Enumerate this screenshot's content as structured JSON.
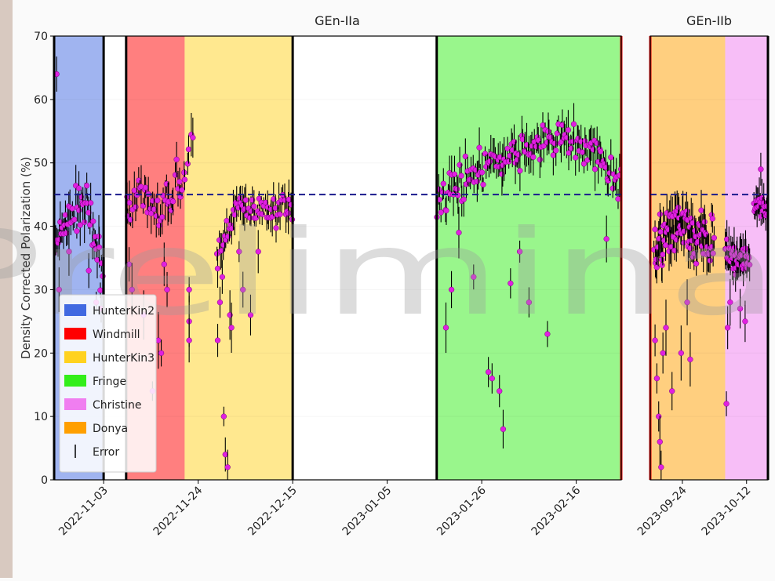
{
  "chart_data": {
    "type": "scatter",
    "ylabel": "Density Corrected Polarization (%)",
    "watermark": "Preliminary",
    "ylim": [
      0,
      70
    ],
    "yticks": [
      0,
      10,
      20,
      30,
      40,
      50,
      60,
      70
    ],
    "reference_line_y": 45,
    "legend": {
      "placement": "lower-left",
      "entries": [
        {
          "label": "HunterKin2",
          "color": "#4169e1",
          "kind": "patch"
        },
        {
          "label": "Windmill",
          "color": "#ff0000",
          "kind": "patch"
        },
        {
          "label": "HunterKin3",
          "color": "#ffd21f",
          "kind": "patch"
        },
        {
          "label": "Fringe",
          "color": "#33ee1a",
          "kind": "patch"
        },
        {
          "label": "Christine",
          "color": "#f07ef0",
          "kind": "patch"
        },
        {
          "label": "Donya",
          "color": "#ff9f00",
          "kind": "patch"
        },
        {
          "label": "Error",
          "color": "#000000",
          "kind": "line"
        }
      ]
    },
    "panels": [
      {
        "title": "GEn-IIa",
        "xlim": [
          "2022-10-23",
          "2023-02-26"
        ],
        "xticks": [
          "2022-11-03",
          "2022-11-24",
          "2022-12-15",
          "2023-01-05",
          "2023-01-26",
          "2023-02-16"
        ],
        "cell_periods": [
          {
            "cell": "HunterKin2",
            "start": "2022-10-23",
            "end": "2022-11-03",
            "color": "#4169e1"
          },
          {
            "cell": "Windmill",
            "start": "2022-11-08",
            "end": "2022-11-21",
            "color": "#ff0000"
          },
          {
            "cell": "HunterKin3",
            "start": "2022-11-21",
            "end": "2022-12-15",
            "color": "#ffd21f"
          },
          {
            "cell": "Fringe",
            "start": "2023-01-16",
            "end": "2023-02-26",
            "color": "#33ee1a"
          }
        ],
        "change_lines": [
          {
            "date": "2022-10-23",
            "color": "#000000"
          },
          {
            "date": "2022-11-03",
            "color": "#000000"
          },
          {
            "date": "2022-11-08",
            "color": "#000000"
          },
          {
            "date": "2022-12-15",
            "color": "#000000"
          },
          {
            "date": "2023-01-16",
            "color": "#000000"
          },
          {
            "date": "2023-02-26",
            "color": "#dd0000"
          }
        ],
        "clusters": [
          {
            "start": "2022-10-23",
            "end": "2022-11-03",
            "trend": [
              [
                0,
                36
              ],
              [
                0.2,
                40
              ],
              [
                0.4,
                42
              ],
              [
                0.6,
                44
              ],
              [
                0.8,
                38
              ],
              [
                1,
                32
              ]
            ],
            "spread": 3,
            "n": 45,
            "outliers": [
              [
                0.05,
                64
              ],
              [
                0.1,
                30
              ],
              [
                0.3,
                36
              ],
              [
                0.5,
                46
              ],
              [
                0.7,
                33
              ],
              [
                0.85,
                28
              ],
              [
                0.95,
                27
              ]
            ]
          },
          {
            "start": "2022-11-08",
            "end": "2022-11-21",
            "trend": [
              [
                0,
                43
              ],
              [
                0.3,
                44
              ],
              [
                0.6,
                42
              ],
              [
                0.85,
                47
              ],
              [
                1,
                48
              ]
            ],
            "spread": 2.5,
            "n": 40,
            "outliers": [
              [
                0.05,
                34
              ],
              [
                0.1,
                30
              ],
              [
                0.3,
                26
              ],
              [
                0.45,
                14
              ],
              [
                0.55,
                22
              ],
              [
                0.6,
                20
              ],
              [
                0.65,
                34
              ],
              [
                0.7,
                30
              ]
            ]
          },
          {
            "start": "2022-11-21",
            "end": "2022-11-23",
            "trend": [
              [
                0,
                47
              ],
              [
                1,
                55
              ]
            ],
            "spread": 1.5,
            "n": 5,
            "outliers": [
              [
                0.5,
                30
              ],
              [
                0.5,
                25
              ],
              [
                0.5,
                22
              ]
            ]
          },
          {
            "start": "2022-11-28",
            "end": "2022-12-15",
            "trend": [
              [
                0,
                34
              ],
              [
                0.15,
                40
              ],
              [
                0.3,
                43
              ],
              [
                0.5,
                42
              ],
              [
                0.7,
                42
              ],
              [
                1,
                43
              ]
            ],
            "spread": 1.8,
            "n": 60,
            "outliers": [
              [
                0.02,
                22
              ],
              [
                0.05,
                28
              ],
              [
                0.08,
                32
              ],
              [
                0.1,
                10
              ],
              [
                0.12,
                4
              ],
              [
                0.15,
                2
              ],
              [
                0.18,
                26
              ],
              [
                0.2,
                24
              ],
              [
                0.3,
                36
              ],
              [
                0.35,
                30
              ],
              [
                0.45,
                26
              ],
              [
                0.55,
                36
              ]
            ]
          },
          {
            "start": "2023-01-16",
            "end": "2023-02-26",
            "trend": [
              [
                0,
                44
              ],
              [
                0.1,
                47
              ],
              [
                0.3,
                50
              ],
              [
                0.5,
                52
              ],
              [
                0.7,
                54
              ],
              [
                0.85,
                52
              ],
              [
                1,
                47
              ]
            ],
            "spread": 2.4,
            "n": 140,
            "outliers": [
              [
                0.05,
                24
              ],
              [
                0.08,
                30
              ],
              [
                0.12,
                39
              ],
              [
                0.2,
                32
              ],
              [
                0.28,
                17
              ],
              [
                0.3,
                16
              ],
              [
                0.34,
                14
              ],
              [
                0.36,
                8
              ],
              [
                0.4,
                31
              ],
              [
                0.45,
                36
              ],
              [
                0.5,
                28
              ],
              [
                0.6,
                23
              ],
              [
                0.92,
                38
              ]
            ]
          }
        ]
      },
      {
        "title": "GEn-IIb",
        "xlim": [
          "2023-09-15",
          "2023-10-18"
        ],
        "xticks": [
          "2023-09-24",
          "2023-10-12"
        ],
        "cell_periods": [
          {
            "cell": "Donya",
            "start": "2023-09-15",
            "end": "2023-10-06",
            "color": "#ff9f00"
          },
          {
            "cell": "Christine",
            "start": "2023-10-06",
            "end": "2023-10-18",
            "color": "#f07ef0"
          }
        ],
        "change_lines": [
          {
            "date": "2023-09-15",
            "color": "#dd0000"
          },
          {
            "date": "2023-10-18",
            "color": "#000000"
          }
        ],
        "clusters": [
          {
            "start": "2023-09-16",
            "end": "2023-10-03",
            "trend": [
              [
                0,
                36
              ],
              [
                0.2,
                38
              ],
              [
                0.4,
                40
              ],
              [
                0.6,
                39
              ],
              [
                0.8,
                38
              ],
              [
                1,
                37
              ]
            ],
            "spread": 4,
            "n": 90,
            "outliers": [
              [
                0.02,
                22
              ],
              [
                0.05,
                16
              ],
              [
                0.08,
                10
              ],
              [
                0.1,
                6
              ],
              [
                0.12,
                2
              ],
              [
                0.15,
                20
              ],
              [
                0.2,
                24
              ],
              [
                0.3,
                14
              ],
              [
                0.45,
                20
              ],
              [
                0.55,
                28
              ],
              [
                0.6,
                19
              ]
            ]
          },
          {
            "start": "2023-10-06",
            "end": "2023-10-13",
            "trend": [
              [
                0,
                37
              ],
              [
                0.5,
                35
              ],
              [
                1,
                34
              ]
            ],
            "spread": 2,
            "n": 40,
            "outliers": [
              [
                0.05,
                12
              ],
              [
                0.1,
                24
              ],
              [
                0.2,
                28
              ],
              [
                0.6,
                27
              ],
              [
                0.8,
                25
              ]
            ]
          },
          {
            "start": "2023-10-14",
            "end": "2023-10-18",
            "trend": [
              [
                0,
                43
              ],
              [
                0.5,
                44
              ],
              [
                1,
                42
              ]
            ],
            "spread": 2,
            "n": 18,
            "outliers": [
              [
                0.5,
                49
              ]
            ]
          }
        ]
      }
    ]
  }
}
